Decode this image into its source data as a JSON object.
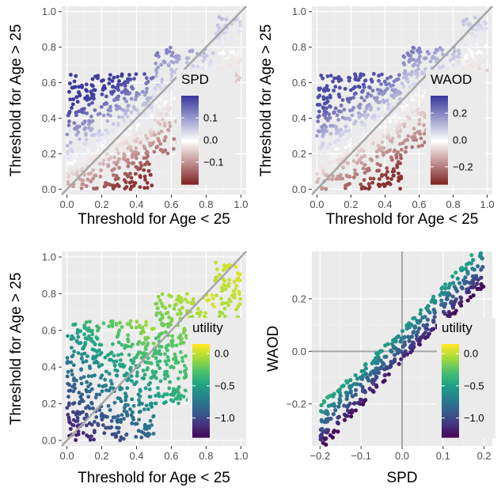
{
  "chart_data": [
    {
      "type": "scatter",
      "panel": "top-left",
      "xlabel": "Threshold for Age < 25",
      "ylabel": "Threshold for Age > 25",
      "xlim": [
        -0.03,
        1.03
      ],
      "ylim": [
        -0.03,
        1.03
      ],
      "xticks": [
        0.0,
        0.2,
        0.4,
        0.6,
        0.8,
        1.0
      ],
      "xtick_labels": [
        "0.0",
        "0.2",
        "0.4",
        "0.6",
        "0.8",
        "1.0"
      ],
      "yticks": [
        0.0,
        0.2,
        0.4,
        0.6,
        0.8,
        1.0
      ],
      "ytick_labels": [
        "0.0",
        "0.2",
        "0.4",
        "0.6",
        "0.8",
        "1.0"
      ],
      "reference_line": "y = x",
      "color_variable": "SPD",
      "colorscale": "diverging red-white-blue",
      "colorscale_low": "#7f1d1d",
      "colorscale_mid": "#ffffff",
      "colorscale_high": "#3b3b9e",
      "legend": {
        "title": "SPD",
        "position": "inside-right",
        "range": [
          -0.2,
          0.2
        ],
        "ticks": [
          0.1,
          0.0,
          -0.1
        ],
        "labels": [
          "0.1",
          "0.0",
          "−0.1"
        ]
      },
      "regions": [
        {
          "x": [
            0.0,
            0.5
          ],
          "y": [
            0.0,
            0.65
          ],
          "color_range": [
            -0.18,
            0.2
          ]
        },
        {
          "x": [
            0.5,
            0.85
          ],
          "y": [
            0.2,
            0.8
          ],
          "color_range": [
            -0.12,
            0.15
          ]
        },
        {
          "x": [
            0.85,
            1.0
          ],
          "y": [
            0.6,
            0.97
          ],
          "color_range": [
            -0.05,
            0.1
          ]
        }
      ]
    },
    {
      "type": "scatter",
      "panel": "top-right",
      "xlabel": "Threshold for Age < 25",
      "ylabel": "Threshold for Age > 25",
      "xlim": [
        -0.03,
        1.03
      ],
      "ylim": [
        -0.03,
        1.03
      ],
      "xticks": [
        0.0,
        0.2,
        0.4,
        0.6,
        0.8,
        1.0
      ],
      "xtick_labels": [
        "0.0",
        "0.2",
        "0.4",
        "0.6",
        "0.8",
        "1.0"
      ],
      "yticks": [
        0.0,
        0.2,
        0.4,
        0.6,
        0.8,
        1.0
      ],
      "ytick_labels": [
        "0.0",
        "0.2",
        "0.4",
        "0.6",
        "0.8",
        "1.0"
      ],
      "reference_line": "y = x",
      "color_variable": "WAOD",
      "colorscale": "diverging red-white-blue",
      "colorscale_low": "#7f1d1d",
      "colorscale_mid": "#ffffff",
      "colorscale_high": "#3b3b9e",
      "legend": {
        "title": "WAOD",
        "position": "inside-right",
        "range": [
          -0.33,
          0.33
        ],
        "ticks": [
          0.2,
          0.0,
          -0.2
        ],
        "labels": [
          "0.2",
          "0.0",
          "−0.2"
        ]
      },
      "regions": [
        {
          "x": [
            0.0,
            0.5
          ],
          "y": [
            0.0,
            0.65
          ],
          "color_range": [
            -0.3,
            0.3
          ]
        },
        {
          "x": [
            0.5,
            0.85
          ],
          "y": [
            0.2,
            0.8
          ],
          "color_range": [
            -0.2,
            0.25
          ]
        },
        {
          "x": [
            0.85,
            1.0
          ],
          "y": [
            0.6,
            0.97
          ],
          "color_range": [
            -0.08,
            0.15
          ]
        }
      ]
    },
    {
      "type": "scatter",
      "panel": "bottom-left",
      "xlabel": "Threshold for Age < 25",
      "ylabel": "Threshold for Age > 25",
      "xlim": [
        -0.03,
        1.03
      ],
      "ylim": [
        -0.03,
        1.03
      ],
      "xticks": [
        0.0,
        0.2,
        0.4,
        0.6,
        0.8,
        1.0
      ],
      "xtick_labels": [
        "0.0",
        "0.2",
        "0.4",
        "0.6",
        "0.8",
        "1.0"
      ],
      "yticks": [
        0.0,
        0.2,
        0.4,
        0.6,
        0.8,
        1.0
      ],
      "ytick_labels": [
        "0.0",
        "0.2",
        "0.4",
        "0.6",
        "0.8",
        "1.0"
      ],
      "reference_line": "y = x",
      "color_variable": "utility",
      "colorscale": "viridis",
      "legend": {
        "title": "utility",
        "position": "inside-right",
        "range": [
          -1.3,
          0.15
        ],
        "ticks": [
          0.0,
          -0.5,
          -1.0
        ],
        "labels": [
          "0.0",
          "−0.5",
          "−1.0"
        ]
      },
      "regions": [
        {
          "x": [
            0.0,
            0.5
          ],
          "y": [
            0.0,
            0.65
          ],
          "color_range": [
            -1.25,
            0.0
          ]
        },
        {
          "x": [
            0.5,
            0.85
          ],
          "y": [
            0.2,
            0.8
          ],
          "color_range": [
            -0.5,
            0.1
          ]
        },
        {
          "x": [
            0.85,
            1.0
          ],
          "y": [
            0.6,
            0.97
          ],
          "color_range": [
            -0.1,
            0.1
          ]
        }
      ]
    },
    {
      "type": "scatter",
      "panel": "bottom-right",
      "xlabel": "SPD",
      "ylabel": "WAOD",
      "xlim": [
        -0.22,
        0.22
      ],
      "ylim": [
        -0.36,
        0.38
      ],
      "xticks": [
        -0.2,
        -0.1,
        0.0,
        0.1,
        0.2
      ],
      "xtick_labels": [
        "−0.2",
        "−0.1",
        "0.0",
        "0.1",
        "0.2"
      ],
      "yticks": [
        -0.2,
        0.0,
        0.2
      ],
      "ytick_labels": [
        "−0.2",
        "0.0",
        "0.2"
      ],
      "reference_lines": [
        "x = 0",
        "y = 0"
      ],
      "color_variable": "utility",
      "colorscale": "viridis",
      "legend": {
        "title": "utility",
        "position": "inside-right",
        "range": [
          -1.3,
          0.15
        ],
        "ticks": [
          0.0,
          -0.5,
          -1.0
        ],
        "labels": [
          "0.0",
          "−0.5",
          "−1.0"
        ]
      },
      "trend": {
        "x_range": [
          -0.2,
          0.2
        ],
        "slope": 1.55,
        "intercept": 0.02,
        "spread": 0.1
      }
    }
  ]
}
